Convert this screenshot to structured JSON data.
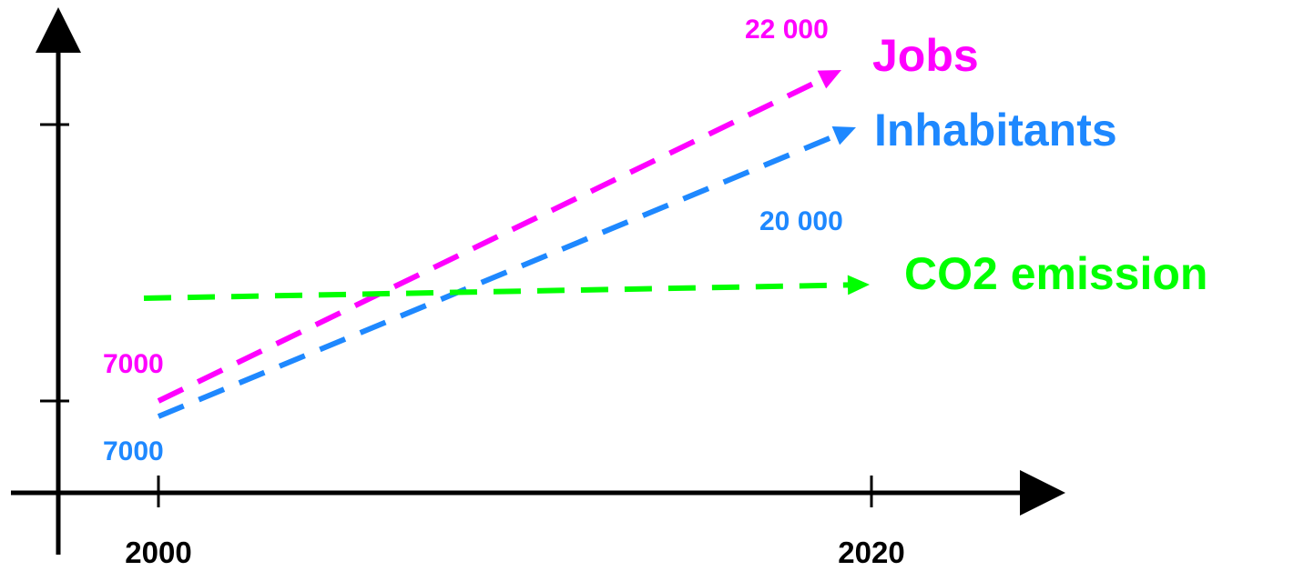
{
  "chart_data": {
    "type": "line",
    "title": "",
    "xlabel": "",
    "ylabel": "",
    "x": [
      2000,
      2020
    ],
    "x_tick_labels": [
      "2000",
      "2020"
    ],
    "grid": false,
    "line_style": "dashed",
    "series": [
      {
        "name": "Jobs",
        "color": "#ff00ff",
        "values": [
          7000,
          22000
        ],
        "start_label": "7000",
        "end_label": "22 000"
      },
      {
        "name": "Inhabitants",
        "color": "#1e88ff",
        "values": [
          7000,
          20000
        ],
        "start_label": "7000",
        "end_label": "20 000"
      },
      {
        "name": "CO2 emission",
        "color": "#00ff00",
        "trend": "roughly flat"
      }
    ]
  }
}
